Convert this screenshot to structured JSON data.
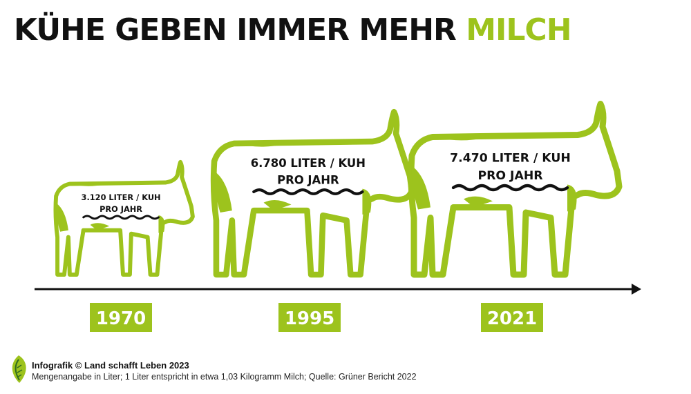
{
  "title": {
    "main": "KÜHE GEBEN IMMER MEHR",
    "accent": "MILCH"
  },
  "colors": {
    "accent": "#9dc31d",
    "text": "#111111",
    "background": "#ffffff"
  },
  "chart_data": {
    "type": "bar",
    "unit": "Liter / Kuh pro Jahr",
    "categories": [
      "1970",
      "1995",
      "2021"
    ],
    "values": [
      3120,
      6780,
      7470
    ],
    "labels": [
      {
        "line1": "3.120 LITER / KUH",
        "line2": "PRO JAHR"
      },
      {
        "line1": "6.780 LITER / KUH",
        "line2": "PRO JAHR"
      },
      {
        "line1": "7.470 LITER / KUH",
        "line2": "PRO JAHR"
      }
    ],
    "legend": "none",
    "grid": false
  },
  "footer": {
    "credit": "Infografik © Land schafft Leben 2023",
    "note": "Mengenangabe in Liter; 1 Liter entspricht in etwa 1,03 Kilogramm Milch; Quelle: Grüner Bericht 2022",
    "logo_icon": "leaf-logo-icon"
  }
}
